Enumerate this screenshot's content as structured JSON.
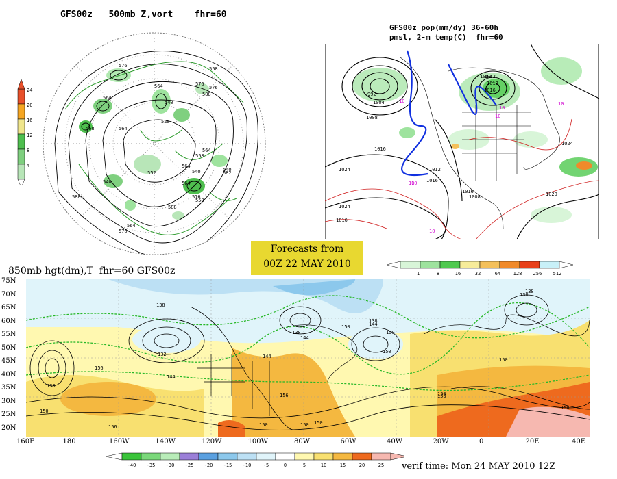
{
  "panel_500mb": {
    "title": "GFS00z   500mb Z,vort    fhr=60",
    "colorbar": {
      "values": [
        "4",
        "8",
        "12",
        "16",
        "20",
        "24"
      ],
      "colors": [
        "#b8e6b8",
        "#7fd07f",
        "#4fbf4f",
        "#f0e68c",
        "#f5a623",
        "#e8502a"
      ]
    },
    "contour_labels": [
      "576",
      "558",
      "564",
      "564",
      "528",
      "540",
      "564",
      "558",
      "540",
      "564",
      "582",
      "558",
      "576",
      "564",
      "540",
      "552",
      "564",
      "588",
      "558",
      "576",
      "540",
      "588",
      "564",
      "576",
      "588",
      "576"
    ]
  },
  "panel_pop": {
    "title_line1": "GFS00z pop(mm/dy) 36-60h",
    "title_line2": "pmsl, 2-m temp(C)  fhr=60",
    "isobar_labels": [
      "992",
      "1004",
      "1008",
      "1012",
      "1016",
      "1016",
      "1024",
      "1024",
      "1012",
      "1016",
      "1008",
      "1016",
      "1024",
      "1020",
      "1008",
      "1012",
      "1016"
    ],
    "temp_labels": [
      "10",
      "10",
      "10",
      "10",
      "10",
      "10",
      "10"
    ],
    "colorbar": {
      "values": [
        "1",
        "8",
        "16",
        "32",
        "64",
        "128",
        "256",
        "512"
      ],
      "colors": [
        "#d8f5d8",
        "#9ee39e",
        "#4fc94f",
        "#f7ec9a",
        "#f4c05a",
        "#f08a2a",
        "#e8401a",
        "#c8f0f8"
      ]
    }
  },
  "forecast_box": {
    "line1": "Forecasts from",
    "line2": "00Z 22 MAY 2010",
    "color": "#e8d830"
  },
  "panel_850mb": {
    "title": "850mb hgt(dm),T  fhr=60 GFS00z",
    "lat_labels": [
      "75N",
      "70N",
      "65N",
      "60N",
      "55N",
      "50N",
      "45N",
      "40N",
      "35N",
      "30N",
      "25N",
      "20N"
    ],
    "lon_labels": [
      "160E",
      "180",
      "160W",
      "140W",
      "120W",
      "100W",
      "80W",
      "60W",
      "40W",
      "20W",
      "0",
      "20E",
      "40E"
    ],
    "height_labels": [
      "138",
      "138",
      "132",
      "138",
      "156",
      "144",
      "144",
      "144",
      "150",
      "150",
      "156",
      "138",
      "150",
      "138",
      "138",
      "144",
      "150",
      "150",
      "156",
      "150",
      "150",
      "156",
      "150",
      "150",
      "150"
    ],
    "colorbar": {
      "values": [
        "-40",
        "-35",
        "-30",
        "-25",
        "-20",
        "-15",
        "-10",
        "-5",
        "0",
        "5",
        "10",
        "15",
        "20",
        "25"
      ],
      "colors": [
        "#3ac43a",
        "#7ad87a",
        "#b8ecb8",
        "#9b7fd8",
        "#5aa0e0",
        "#8cc8ec",
        "#bce0f4",
        "#e0f4fa",
        "#ffffff",
        "#fff8b0",
        "#f8e070",
        "#f4b840",
        "#ee6a1e",
        "#f6b8b0"
      ]
    },
    "verif_time": "verif time: Mon 24 MAY 2010 12Z"
  }
}
